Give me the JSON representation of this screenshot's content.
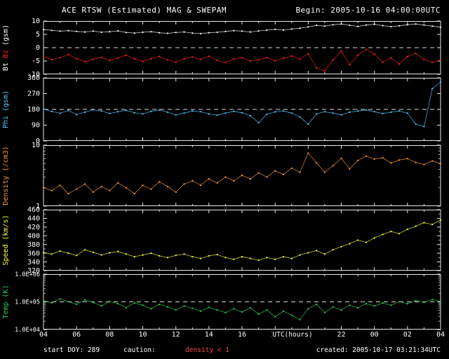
{
  "header": {
    "title": "ACE RTSW (Estimated) MAG & SWEPAM",
    "begin": "Begin: 2005-10-16 04:00:00UTC"
  },
  "footer": {
    "start_doy": "start DOY: 289",
    "caution_label": "caution:",
    "caution_value": "density < 1",
    "created": "created: 2005-10-17 03:21:34UTC"
  },
  "xaxis": {
    "label": "UTC(hours)",
    "ticks": [
      "04",
      "06",
      "08",
      "10",
      "12",
      "14",
      "16",
      "18",
      "20",
      "22",
      "00",
      "02",
      "04"
    ],
    "tick_hours": [
      0,
      2,
      4,
      6,
      8,
      10,
      12,
      14,
      16,
      18,
      20,
      22,
      24
    ]
  },
  "colors": {
    "background": "#000000",
    "frame": "#e6e6e6",
    "bt": "#ffffff",
    "bz": "#ff2222",
    "phi": "#55ccff",
    "density": "#ff9933",
    "speed": "#ffff44",
    "temp": "#33cc55",
    "caution": "#ff4444"
  },
  "chart_data": {
    "type": "line",
    "title": "ACE RTSW (Estimated) MAG & SWEPAM",
    "begin": "2005-10-16 04:00:00UTC",
    "created": "2005-10-17 03:21:34UTC",
    "start_doy": 289,
    "xlabel": "UTC(hours)",
    "x_tick_labels": [
      "04",
      "06",
      "08",
      "10",
      "12",
      "14",
      "16",
      "18",
      "20",
      "22",
      "00",
      "02",
      "04"
    ],
    "x_range_hours": [
      0,
      24
    ],
    "x_hours_since_start": [
      0,
      0.5,
      1,
      1.5,
      2,
      2.5,
      3,
      3.5,
      4,
      4.5,
      5,
      5.5,
      6,
      6.5,
      7,
      7.5,
      8,
      8.5,
      9,
      9.5,
      10,
      10.5,
      11,
      11.5,
      12,
      12.5,
      13,
      13.5,
      14,
      14.5,
      15,
      15.5,
      16,
      16.5,
      17,
      17.5,
      18,
      18.5,
      19,
      19.5,
      20,
      20.5,
      21,
      21.5,
      22,
      22.5,
      23,
      23.5,
      24
    ],
    "panels": [
      {
        "name": "mag",
        "ylabel": "Bt Bz (gsm)",
        "ylabel_parts": [
          {
            "text": "Bt ",
            "color": "#ffffff"
          },
          {
            "text": "Bz ",
            "color": "#ff2222"
          },
          {
            "text": "(gsm)",
            "color": "#ffffff"
          }
        ],
        "ylim": [
          -10,
          10
        ],
        "yticks": [
          10,
          5,
          0,
          -5,
          -10
        ],
        "ytick_labels": [
          "10",
          "5",
          "0",
          "-5",
          "-10"
        ],
        "dashed_at": 0,
        "log": false,
        "series": [
          {
            "name": "Bt",
            "color": "#ffffff",
            "values": [
              6.8,
              6.5,
              6.2,
              6.4,
              6.1,
              5.9,
              6.2,
              5.8,
              6.0,
              6.3,
              5.7,
              5.5,
              5.8,
              6.0,
              5.6,
              5.4,
              5.7,
              5.9,
              5.5,
              5.3,
              5.6,
              5.8,
              6.1,
              6.4,
              6.2,
              5.9,
              6.3,
              6.6,
              6.9,
              6.6,
              7.0,
              7.3,
              7.8,
              8.4,
              8.1,
              8.6,
              8.9,
              8.4,
              8.0,
              8.5,
              8.8,
              8.3,
              7.9,
              8.2,
              8.6,
              8.9,
              8.5,
              8.1,
              7.7
            ]
          },
          {
            "name": "Bz",
            "color": "#ff2222",
            "values": [
              -3.2,
              -4.5,
              -3.8,
              -2.6,
              -4.1,
              -5.2,
              -4.4,
              -3.6,
              -4.8,
              -3.9,
              -2.8,
              -4.2,
              -5.1,
              -4.1,
              -3.3,
              -4.6,
              -5.4,
              -4.2,
              -3.5,
              -4.4,
              -3.2,
              -4.8,
              -5.6,
              -4.3,
              -3.8,
              -5.0,
              -4.5,
              -3.7,
              -4.9,
              -4.0,
              -3.1,
              -4.3,
              -2.2,
              -7.6,
              -8.8,
              -4.6,
              -1.2,
              -6.4,
              -2.8,
              -0.6,
              -2.4,
              -5.4,
              -3.9,
              -6.1,
              -3.4,
              -2.1,
              -4.4,
              -5.5,
              -4.7
            ]
          }
        ]
      },
      {
        "name": "phi",
        "ylabel": "Phi (gsm)",
        "ylim": [
          0,
          360
        ],
        "yticks": [
          360,
          270,
          180,
          90,
          0
        ],
        "ytick_labels": [
          "360",
          "270",
          "180",
          "90",
          "0"
        ],
        "dashed_at": 180,
        "log": false,
        "series": [
          {
            "name": "Phi",
            "color": "#55ccff",
            "values": [
              182,
              168,
              158,
              174,
              150,
              164,
              178,
              171,
              157,
              167,
              174,
              161,
              154,
              169,
              177,
              164,
              149,
              159,
              171,
              167,
              154,
              147,
              159,
              169,
              161,
              144,
              104,
              152,
              166,
              171,
              159,
              137,
              96,
              154,
              167,
              159,
              149,
              164,
              171,
              177,
              167,
              157,
              164,
              171,
              159,
              96,
              82,
              298,
              336
            ]
          }
        ]
      },
      {
        "name": "density",
        "ylabel": "Density (/cm3)",
        "ylim": [
          1,
          10
        ],
        "yticks": [
          10,
          1
        ],
        "ytick_labels": [
          "10",
          "1"
        ],
        "minor_ticks": [
          2,
          3,
          4,
          5,
          6,
          7,
          8,
          9
        ],
        "dashed_at": null,
        "log": true,
        "series": [
          {
            "name": "Density",
            "color": "#ff9933",
            "values": [
              2.0,
              1.8,
              2.2,
              1.6,
              1.9,
              2.3,
              1.7,
              2.1,
              1.8,
              2.4,
              2.0,
              1.6,
              2.2,
              1.9,
              2.5,
              2.1,
              1.7,
              2.3,
              2.6,
              2.2,
              2.8,
              2.4,
              3.0,
              2.6,
              3.2,
              2.8,
              3.5,
              3.0,
              3.8,
              3.3,
              4.2,
              3.6,
              7.4,
              5.1,
              3.6,
              4.6,
              6.1,
              4.1,
              5.6,
              6.6,
              5.9,
              6.2,
              5.1,
              5.7,
              6.0,
              5.2,
              4.8,
              5.5,
              5.0
            ]
          }
        ]
      },
      {
        "name": "speed",
        "ylabel": "Speed (km/s)",
        "ylim": [
          320,
          460
        ],
        "yticks": [
          460,
          440,
          420,
          400,
          380,
          360,
          340,
          320
        ],
        "ytick_labels": [
          "460",
          "440",
          "420",
          "400",
          "380",
          "360",
          "340",
          "320"
        ],
        "minor_ticks": [
          330,
          350,
          370,
          390,
          410,
          430,
          450
        ],
        "dashed_at": null,
        "log": false,
        "series": [
          {
            "name": "Speed",
            "color": "#ffff44",
            "values": [
              362,
              358,
              365,
              360,
              355,
              368,
              362,
              356,
              361,
              364,
              358,
              352,
              356,
              360,
              354,
              350,
              355,
              358,
              352,
              348,
              354,
              357,
              350,
              346,
              352,
              348,
              344,
              350,
              346,
              352,
              348,
              356,
              361,
              366,
              358,
              368,
              375,
              382,
              390,
              385,
              395,
              403,
              410,
              405,
              415,
              422,
              430,
              426,
              436
            ]
          }
        ]
      },
      {
        "name": "temp",
        "ylabel": "Temp (K)",
        "ylim": [
          10000,
          1000000
        ],
        "yticks": [
          1000000,
          100000,
          10000
        ],
        "ytick_labels": [
          "1.0E+06",
          "1.0E+05",
          "1.0E+04"
        ],
        "minor_ticks": [
          20000,
          30000,
          40000,
          50000,
          60000,
          70000,
          80000,
          90000,
          200000,
          300000,
          400000,
          500000,
          600000,
          700000,
          800000,
          900000
        ],
        "dashed_at": 100000,
        "log": true,
        "series": [
          {
            "name": "Temp",
            "color": "#33cc55",
            "values": [
              110000,
              92000,
              128000,
              101000,
              82000,
              118000,
              95000,
              72000,
              103000,
              86000,
              62000,
              91000,
              76000,
              56000,
              81000,
              66000,
              51000,
              71000,
              59000,
              46000,
              63000,
              51000,
              41000,
              56000,
              43000,
              61000,
              36000,
              51000,
              29000,
              46000,
              33000,
              23000,
              56000,
              81000,
              41000,
              66000,
              51000,
              76000,
              61000,
              86000,
              71000,
              91000,
              76000,
              101000,
              86000,
              111000,
              96000,
              121000,
              103000
            ]
          }
        ]
      }
    ]
  }
}
